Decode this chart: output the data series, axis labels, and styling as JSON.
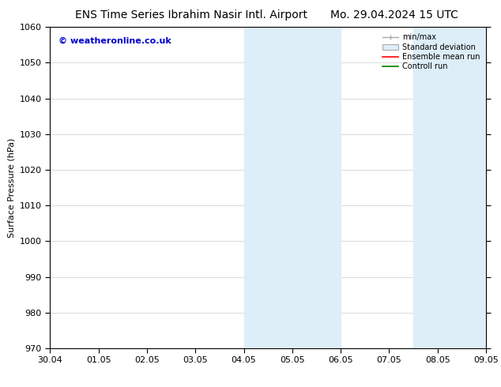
{
  "title_left": "ENS Time Series Ibrahim Nasir Intl. Airport",
  "title_right": "Mo. 29.04.2024 15 UTC",
  "ylabel": "Surface Pressure (hPa)",
  "ylim": [
    970,
    1060
  ],
  "yticks": [
    970,
    980,
    990,
    1000,
    1010,
    1020,
    1030,
    1040,
    1050,
    1060
  ],
  "xtick_labels": [
    "30.04",
    "01.05",
    "02.05",
    "03.05",
    "04.05",
    "05.05",
    "06.05",
    "07.05",
    "08.05",
    "09.05"
  ],
  "shaded_regions": [
    {
      "xstart": 4.0,
      "xend": 6.0,
      "color": "#ddeef8"
    },
    {
      "xstart": 7.5,
      "xend": 9.0,
      "color": "#ddeef8"
    }
  ],
  "watermark": "© weatheronline.co.uk",
  "watermark_color": "#0000cc",
  "background_color": "#ffffff",
  "legend_items": [
    {
      "label": "min/max",
      "type": "errorbar",
      "color": "#aaaaaa",
      "lw": 1.0
    },
    {
      "label": "Standard deviation",
      "type": "patch",
      "facecolor": "#ddeef8",
      "edgecolor": "#aaaaaa"
    },
    {
      "label": "Ensemble mean run",
      "type": "line",
      "color": "#ff0000",
      "lw": 1.2
    },
    {
      "label": "Controll run",
      "type": "line",
      "color": "#008000",
      "lw": 1.2
    }
  ],
  "title_fontsize": 10,
  "ylabel_fontsize": 8,
  "tick_fontsize": 8,
  "legend_fontsize": 7,
  "watermark_fontsize": 8
}
